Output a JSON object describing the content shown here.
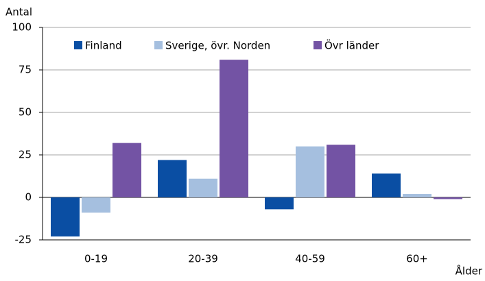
{
  "chart_data": {
    "type": "bar",
    "ylabel": "Antal",
    "xlabel": "Ålder",
    "categories": [
      "0-19",
      "20-39",
      "40-59",
      "60+"
    ],
    "series": [
      {
        "name": "Finland",
        "color": "#0a4ea3",
        "values": [
          -23,
          22,
          -7,
          14
        ]
      },
      {
        "name": "Sverige, övr. Norden",
        "color": "#a5bfdf",
        "values": [
          -9,
          11,
          30,
          2
        ]
      },
      {
        "name": "Övr länder",
        "color": "#7353a4",
        "values": [
          32,
          81,
          31,
          -1
        ]
      }
    ],
    "ylim": [
      -25,
      100
    ],
    "yticks": [
      -25,
      0,
      25,
      50,
      75,
      100
    ],
    "grid": true,
    "legend": "top-left"
  }
}
